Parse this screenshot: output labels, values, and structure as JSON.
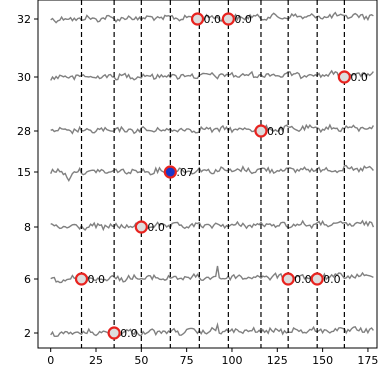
{
  "chart_data": {
    "type": "line",
    "title": "",
    "xlabel": "",
    "ylabel": "",
    "xlim": [
      -7,
      180
    ],
    "x_ticks": [
      0,
      25,
      50,
      75,
      100,
      125,
      150,
      175
    ],
    "y_ticks": [
      "32",
      "30",
      "28",
      "15",
      "8",
      "6",
      "2"
    ],
    "vlines": [
      17,
      35,
      50,
      66,
      82,
      98,
      116,
      131,
      147,
      162
    ],
    "grid": false,
    "legend": "none",
    "colors": {
      "trace": "#808080",
      "vline": "#000000",
      "marker_edge": "#e8231f",
      "marker_fill_default": "#dddddd",
      "marker_fill_highlight": "#1a35c8"
    },
    "rows": [
      {
        "label": "32",
        "annotations": [
          {
            "x": 81,
            "text": "0.0",
            "fill": "#dddddd"
          },
          {
            "x": 98,
            "text": "0.0",
            "fill": "#dddddd"
          }
        ]
      },
      {
        "label": "30",
        "annotations": [
          {
            "x": 162,
            "text": "0.0",
            "fill": "#dddddd"
          }
        ]
      },
      {
        "label": "28",
        "annotations": [
          {
            "x": 116,
            "text": "0.0",
            "fill": "#dddddd"
          }
        ]
      },
      {
        "label": "15",
        "annotations": [
          {
            "x": 66,
            "text": ".07",
            "fill": "#1a35c8"
          }
        ]
      },
      {
        "label": "8",
        "annotations": [
          {
            "x": 50,
            "text": "0.0",
            "fill": "#dddddd"
          }
        ]
      },
      {
        "label": "6",
        "annotations": [
          {
            "x": 17,
            "text": "0.0",
            "fill": "#dddddd"
          },
          {
            "x": 131,
            "text": "0.0",
            "fill": "#dddddd"
          },
          {
            "x": 147,
            "text": "0.0",
            "fill": "#dddddd"
          }
        ]
      },
      {
        "label": "2",
        "annotations": [
          {
            "x": 35,
            "text": "0.0",
            "fill": "#dddddd"
          }
        ]
      }
    ]
  }
}
